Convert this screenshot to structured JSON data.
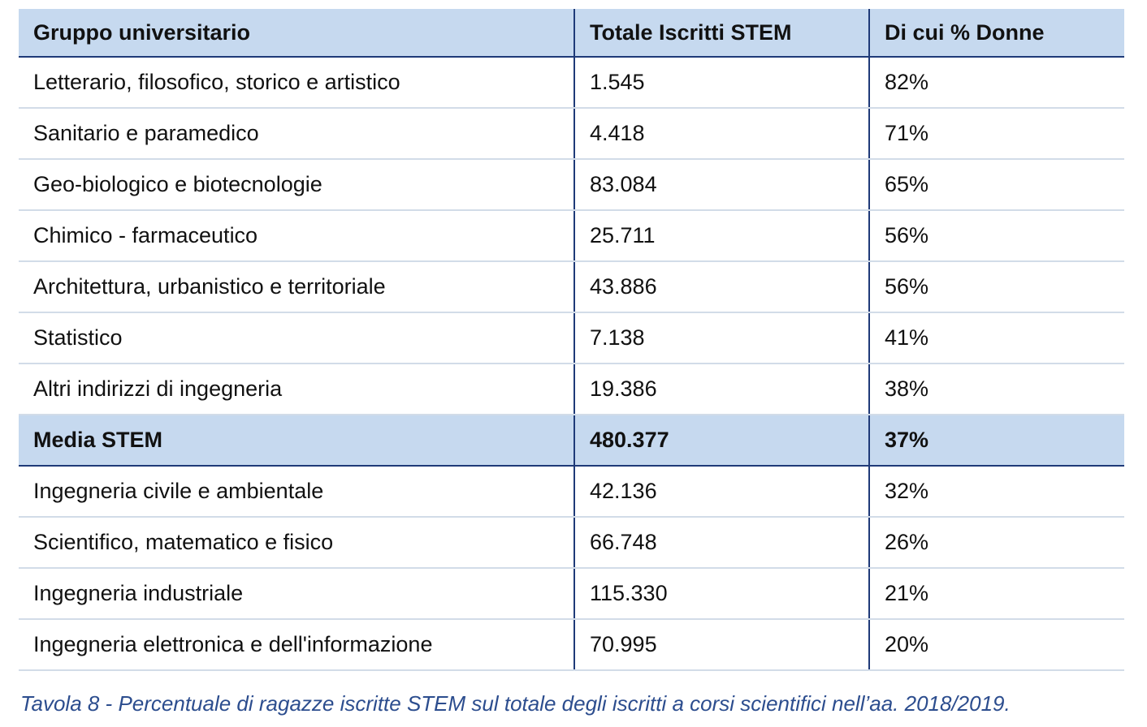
{
  "table": {
    "headers": [
      "Gruppo universitario",
      "Totale Iscritti STEM",
      "Di cui % Donne"
    ],
    "rows": [
      {
        "group": "Letterario, filosofico, storico e artistico",
        "total": "1.545",
        "women": "82%",
        "highlight": false
      },
      {
        "group": "Sanitario e paramedico",
        "total": "4.418",
        "women": "71%",
        "highlight": false
      },
      {
        "group": "Geo-biologico e biotecnologie",
        "total": "83.084",
        "women": "65%",
        "highlight": false
      },
      {
        "group": "Chimico - farmaceutico",
        "total": "25.711",
        "women": "56%",
        "highlight": false
      },
      {
        "group": "Architettura, urbanistico e territoriale",
        "total": "43.886",
        "women": "56%",
        "highlight": false
      },
      {
        "group": "Statistico",
        "total": "7.138",
        "women": "41%",
        "highlight": false
      },
      {
        "group": "Altri indirizzi di ingegneria",
        "total": "19.386",
        "women": "38%",
        "highlight": false
      },
      {
        "group": "Media STEM",
        "total": "480.377",
        "women": "37%",
        "highlight": true
      },
      {
        "group": "Ingegneria civile e ambientale",
        "total": "42.136",
        "women": "32%",
        "highlight": false
      },
      {
        "group": "Scientifico, matematico e fisico",
        "total": "66.748",
        "women": "26%",
        "highlight": false
      },
      {
        "group": "Ingegneria industriale",
        "total": "115.330",
        "women": "21%",
        "highlight": false
      },
      {
        "group": "Ingegneria elettronica e dell'informazione",
        "total": "70.995",
        "women": "20%",
        "highlight": false
      }
    ]
  },
  "caption": "Tavola 8 - Percentuale di ragazze iscritte STEM sul totale degli iscritti a corsi scientifici nell’aa. 2018/2019.",
  "colors": {
    "header_bg": "#c6d9ef",
    "rule_dark": "#1f3a78",
    "rule_light": "#d2dce8",
    "caption": "#2c4d8e"
  }
}
